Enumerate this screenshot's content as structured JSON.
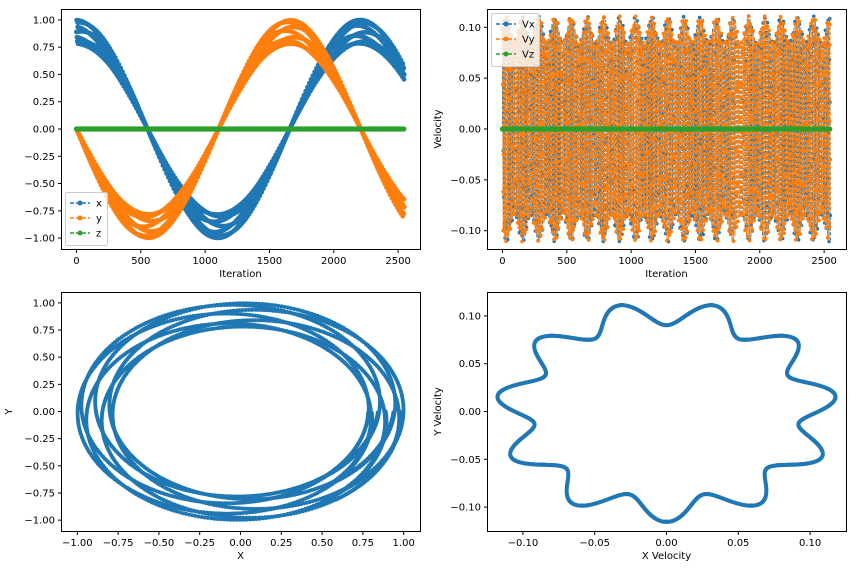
{
  "chart_data": [
    {
      "type": "line",
      "xlabel": "Iteration",
      "ylabel": "",
      "xlim": [
        -120,
        2670
      ],
      "ylim": [
        -1.1,
        1.1
      ],
      "xticks": [
        0,
        500,
        1000,
        1500,
        2000,
        2500
      ],
      "yticks": [
        -1.0,
        -0.75,
        -0.5,
        -0.25,
        0.0,
        0.25,
        0.5,
        0.75,
        1.0
      ],
      "xtick_labels": [
        "0",
        "500",
        "1000",
        "1500",
        "2000",
        "2500"
      ],
      "ytick_labels": [
        "−1.00",
        "−0.75",
        "−0.50",
        "−0.25",
        "0.00",
        "0.25",
        "0.50",
        "0.75",
        "1.00"
      ],
      "legend": "lower-left",
      "n_points": 2550,
      "series": [
        {
          "name": "x",
          "color": "#1f77b4",
          "marker": "circle",
          "linestyle": "dashed",
          "approx": "x ≈ cos(2π·i/2210), band width ≈ 0.22"
        },
        {
          "name": "y",
          "color": "#ff7f0e",
          "marker": "circle",
          "linestyle": "dashed",
          "approx": "y ≈ −sin(2π·i/2210), band width ≈ 0.22"
        },
        {
          "name": "z",
          "color": "#2ca02c",
          "marker": "circle",
          "linestyle": "dashed",
          "approx": "z = 0"
        }
      ]
    },
    {
      "type": "line",
      "xlabel": "Iteration",
      "ylabel": "Velocity",
      "xlim": [
        -120,
        2670
      ],
      "ylim": [
        -0.118,
        0.118
      ],
      "xticks": [
        0,
        500,
        1000,
        1500,
        2000,
        2500
      ],
      "yticks": [
        -0.1,
        -0.05,
        0.0,
        0.05,
        0.1
      ],
      "xtick_labels": [
        "0",
        "500",
        "1000",
        "1500",
        "2000",
        "2500"
      ],
      "ytick_labels": [
        "−0.10",
        "−0.05",
        "0.00",
        "0.05",
        "0.10"
      ],
      "legend": "top-left",
      "series": [
        {
          "name": "Vx",
          "color": "#1f77b4",
          "marker": "circle",
          "linestyle": "dashed",
          "approx": "rapid oscillation between about −0.113 and 0.104"
        },
        {
          "name": "Vy",
          "color": "#ff7f0e",
          "marker": "circle",
          "linestyle": "dashed",
          "approx": "rapid oscillation between about −0.111 and 0.112"
        },
        {
          "name": "Vz",
          "color": "#2ca02c",
          "marker": "circle",
          "linestyle": "dashed",
          "approx": "Vz = 0"
        }
      ]
    },
    {
      "type": "scatter",
      "xlabel": "X",
      "ylabel": "Y",
      "xlim": [
        -1.1,
        1.1
      ],
      "ylim": [
        -1.1,
        1.1
      ],
      "xticks": [
        -1.0,
        -0.75,
        -0.5,
        -0.25,
        0.0,
        0.25,
        0.5,
        0.75,
        1.0
      ],
      "yticks": [
        -1.0,
        -0.75,
        -0.5,
        -0.25,
        0.0,
        0.25,
        0.5,
        0.75,
        1.0
      ],
      "xtick_labels": [
        "−1.00",
        "−0.75",
        "−0.50",
        "−0.25",
        "0.00",
        "0.25",
        "0.50",
        "0.75",
        "1.00"
      ],
      "ytick_labels": [
        "−1.00",
        "−0.75",
        "−0.50",
        "−0.25",
        "0.00",
        "0.25",
        "0.50",
        "0.75",
        "1.00"
      ],
      "series": [
        {
          "color": "#1f77b4",
          "marker": "circle",
          "approx": "annular ring, outer radius ≈ 1.0, inner radius ≈ 0.78"
        }
      ]
    },
    {
      "type": "scatter",
      "xlabel": "X Velocity",
      "ylabel": "Y Velocity",
      "xlim": [
        -0.125,
        0.125
      ],
      "ylim": [
        -0.125,
        0.125
      ],
      "xticks": [
        -0.1,
        -0.05,
        0.0,
        0.05,
        0.1
      ],
      "yticks": [
        -0.1,
        -0.05,
        0.0,
        0.05,
        0.1
      ],
      "xtick_labels": [
        "−0.10",
        "−0.05",
        "0.00",
        "0.05",
        "0.10"
      ],
      "ytick_labels": [
        "−0.10",
        "−0.05",
        "0.00",
        "0.05",
        "0.10"
      ],
      "series": [
        {
          "color": "#1f77b4",
          "marker": "circle",
          "approx": "braided ring, radius ≈ 0.098 ± 0.013 with 11 lobes"
        }
      ]
    }
  ]
}
